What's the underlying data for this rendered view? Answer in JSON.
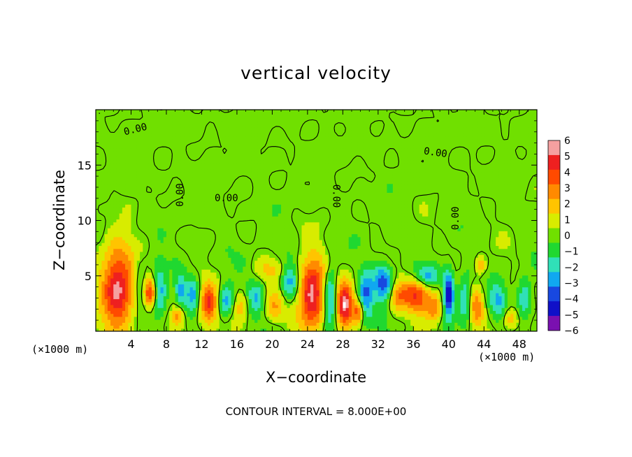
{
  "chart_data": {
    "type": "heatmap",
    "title": "vertical velocity",
    "xlabel": "X−coordinate",
    "ylabel": "Z−coordinate",
    "x_unit_left": "(×1000 m)",
    "x_unit_right": "(×1000 m)",
    "x_ticks": [
      4,
      8,
      12,
      16,
      20,
      24,
      28,
      32,
      36,
      40,
      44,
      48
    ],
    "y_ticks": [
      5,
      10,
      15
    ],
    "xlim": [
      0,
      50
    ],
    "ylim": [
      0,
      20
    ],
    "colorbar": {
      "labels": [
        "6",
        "5",
        "4",
        "3",
        "2",
        "1",
        "0",
        "−1",
        "−2",
        "−3",
        "−4",
        "−5",
        "−6"
      ],
      "colors": [
        "#f5a0a0",
        "#ee2020",
        "#ff4a00",
        "#ff8a00",
        "#ffc400",
        "#d8ec00",
        "#70e000",
        "#20d830",
        "#30e0b8",
        "#10a8f0",
        "#1848e0",
        "#1010c8",
        "#7a10b0"
      ]
    },
    "contour_labels": [
      {
        "text": "0.00",
        "x": 4.5,
        "z": 18.2,
        "angle": -14
      },
      {
        "text": "0.00",
        "x": 38.5,
        "z": 16.1,
        "angle": 8
      },
      {
        "text": "0.00",
        "x": 9.6,
        "z": 12.3,
        "angle": -90
      },
      {
        "text": "0.00",
        "x": 14.8,
        "z": 12.0,
        "angle": 0
      },
      {
        "text": "0.00",
        "x": 27.2,
        "z": 12.2,
        "angle": 90
      },
      {
        "text": "0.00",
        "x": 40.8,
        "z": 10.2,
        "angle": -90
      }
    ],
    "features": [
      {
        "x": 2.5,
        "z": 4.0,
        "w": 6.2,
        "sx": 1.8,
        "sz": 3.6
      },
      {
        "x": 6.2,
        "z": 3.5,
        "w": 4.2,
        "sx": 0.7,
        "sz": 1.3
      },
      {
        "x": 7.2,
        "z": 3.6,
        "w": -3.5,
        "sx": 0.8,
        "sz": 2.2
      },
      {
        "x": 5.0,
        "z": 4.0,
        "w": -2.0,
        "sx": 0.6,
        "sz": 2.0
      },
      {
        "x": 9.3,
        "z": 1.4,
        "w": 3.0,
        "sx": 0.7,
        "sz": 0.9
      },
      {
        "x": 9.6,
        "z": 3.8,
        "w": -2.8,
        "sx": 0.6,
        "sz": 1.4
      },
      {
        "x": 11.0,
        "z": 3.3,
        "w": -2.6,
        "sx": 0.8,
        "sz": 1.6
      },
      {
        "x": 12.8,
        "z": 2.5,
        "w": 5.0,
        "sx": 1.1,
        "sz": 1.8
      },
      {
        "x": 14.7,
        "z": 2.6,
        "w": -3.5,
        "sx": 1.0,
        "sz": 1.5
      },
      {
        "x": 16.5,
        "z": 2.3,
        "w": 2.2,
        "sx": 1.1,
        "sz": 1.3
      },
      {
        "x": 18.0,
        "z": 3.0,
        "w": -2.4,
        "sx": 1.0,
        "sz": 1.6
      },
      {
        "x": 20.2,
        "z": 2.3,
        "w": 2.6,
        "sx": 1.0,
        "sz": 1.3
      },
      {
        "x": 22.0,
        "z": 4.7,
        "w": -3.2,
        "sx": 1.0,
        "sz": 1.6
      },
      {
        "x": 24.5,
        "z": 3.4,
        "w": 6.3,
        "sx": 1.5,
        "sz": 3.2
      },
      {
        "x": 26.6,
        "z": 2.9,
        "w": -3.8,
        "sx": 0.8,
        "sz": 2.8
      },
      {
        "x": 28.2,
        "z": 2.4,
        "w": 5.5,
        "sx": 1.0,
        "sz": 2.2
      },
      {
        "x": 29.8,
        "z": 1.8,
        "w": 3.5,
        "sx": 0.5,
        "sz": 1.0
      },
      {
        "x": 30.6,
        "z": 3.3,
        "w": -3.4,
        "sx": 0.8,
        "sz": 2.2
      },
      {
        "x": 32.6,
        "z": 4.5,
        "w": -4.2,
        "sx": 1.1,
        "sz": 1.7
      },
      {
        "x": 34.2,
        "z": 3.2,
        "w": 2.6,
        "sx": 1.0,
        "sz": 1.4
      },
      {
        "x": 36.4,
        "z": 3.4,
        "w": 4.5,
        "sx": 1.5,
        "sz": 1.6
      },
      {
        "x": 38.4,
        "z": 2.0,
        "w": 3.2,
        "sx": 1.0,
        "sz": 1.3
      },
      {
        "x": 37.5,
        "z": 5.0,
        "w": -3.0,
        "sx": 1.4,
        "sz": 1.0
      },
      {
        "x": 40.0,
        "z": 3.4,
        "w": -5.8,
        "sx": 0.6,
        "sz": 2.0
      },
      {
        "x": 41.8,
        "z": 3.0,
        "w": -3.0,
        "sx": 0.7,
        "sz": 2.0
      },
      {
        "x": 43.2,
        "z": 2.1,
        "w": 3.4,
        "sx": 0.8,
        "sz": 1.6
      },
      {
        "x": 43.6,
        "z": 6.0,
        "w": 2.5,
        "sx": 0.6,
        "sz": 0.8
      },
      {
        "x": 45.6,
        "z": 3.0,
        "w": -2.4,
        "sx": 0.9,
        "sz": 1.5
      },
      {
        "x": 47.0,
        "z": 1.2,
        "w": 2.4,
        "sx": 0.8,
        "sz": 0.9
      },
      {
        "x": 48.6,
        "z": 3.0,
        "w": -2.6,
        "sx": 0.8,
        "sz": 2.0
      },
      {
        "x": 20.0,
        "z": 5.6,
        "w": 1.2,
        "sx": 2.0,
        "sz": 1.0
      }
    ]
  },
  "footer": {
    "contour_interval": "CONTOUR INTERVAL = 8.000E+00"
  }
}
